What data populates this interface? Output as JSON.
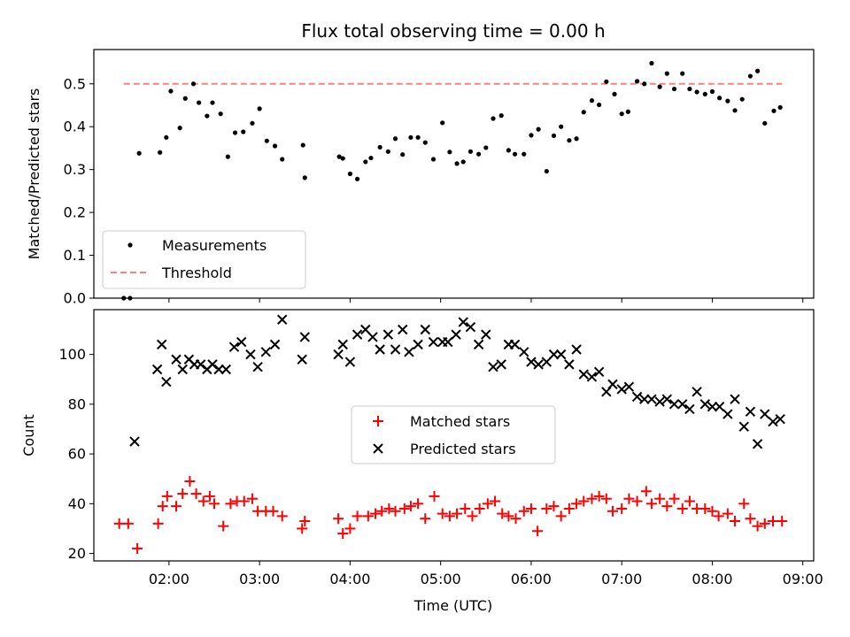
{
  "title": "Flux total observing time = 0.00 h",
  "xlabel": "Time (UTC)",
  "colors": {
    "measure": "#000000",
    "threshold": "#ff7f7f",
    "matched": "#ff0000",
    "predicted": "#000000"
  },
  "chart_data": [
    {
      "type": "scatter",
      "ylabel": "Matched/Predicted stars",
      "xlim": [
        1.17,
        9.12
      ],
      "ylim": [
        0,
        0.58
      ],
      "yticks": [
        "0.0",
        "0.1",
        "0.2",
        "0.3",
        "0.4",
        "0.5"
      ],
      "yticks_values": [
        0,
        0.1,
        0.2,
        0.3,
        0.4,
        0.5
      ],
      "legend": {
        "placement": "lower-left",
        "entries": [
          "Measurements",
          "Threshold"
        ]
      },
      "threshold": {
        "name": "Threshold",
        "y": 0.5,
        "x_range": [
          1.5,
          8.77
        ]
      },
      "series": [
        {
          "name": "Measurements",
          "x": [
            1.5,
            1.57,
            1.67,
            1.9,
            1.97,
            2.02,
            2.12,
            2.18,
            2.27,
            2.33,
            2.42,
            2.48,
            2.57,
            2.65,
            2.73,
            2.82,
            2.92,
            3.0,
            3.08,
            3.17,
            3.25,
            3.48,
            3.5,
            3.88,
            3.92,
            4.0,
            4.08,
            4.17,
            4.23,
            4.33,
            4.42,
            4.5,
            4.58,
            4.67,
            4.75,
            4.83,
            4.92,
            5.02,
            5.1,
            5.18,
            5.25,
            5.33,
            5.42,
            5.5,
            5.58,
            5.67,
            5.75,
            5.82,
            5.92,
            6.0,
            6.08,
            6.17,
            6.25,
            6.33,
            6.42,
            6.5,
            6.58,
            6.67,
            6.75,
            6.83,
            6.92,
            7.0,
            7.07,
            7.17,
            7.25,
            7.33,
            7.42,
            7.5,
            7.58,
            7.67,
            7.75,
            7.83,
            7.92,
            8.0,
            8.08,
            8.17,
            8.25,
            8.33,
            8.42,
            8.5,
            8.58,
            8.68,
            8.75
          ],
          "y": [
            0.0,
            0.0,
            0.338,
            0.34,
            0.375,
            0.483,
            0.397,
            0.466,
            0.5,
            0.456,
            0.425,
            0.456,
            0.43,
            0.33,
            0.386,
            0.388,
            0.408,
            0.442,
            0.367,
            0.355,
            0.324,
            0.357,
            0.281,
            0.33,
            0.326,
            0.29,
            0.278,
            0.318,
            0.327,
            0.352,
            0.342,
            0.372,
            0.335,
            0.375,
            0.375,
            0.363,
            0.324,
            0.409,
            0.341,
            0.314,
            0.318,
            0.342,
            0.336,
            0.351,
            0.419,
            0.426,
            0.345,
            0.336,
            0.336,
            0.38,
            0.394,
            0.296,
            0.379,
            0.4,
            0.368,
            0.372,
            0.434,
            0.461,
            0.451,
            0.505,
            0.476,
            0.43,
            0.435,
            0.506,
            0.5,
            0.548,
            0.493,
            0.524,
            0.488,
            0.524,
            0.488,
            0.481,
            0.476,
            0.482,
            0.467,
            0.46,
            0.438,
            0.464,
            0.518,
            0.53,
            0.408,
            0.437,
            0.445
          ]
        }
      ]
    },
    {
      "type": "scatter",
      "ylabel": "Count",
      "xlim": [
        1.17,
        9.12
      ],
      "ylim": [
        17,
        118
      ],
      "yticks": [
        "20",
        "40",
        "60",
        "80",
        "100"
      ],
      "yticks_values": [
        20,
        40,
        60,
        80,
        100
      ],
      "xticks": [
        "02:00",
        "03:00",
        "04:00",
        "05:00",
        "06:00",
        "07:00",
        "08:00",
        "09:00"
      ],
      "xticks_values": [
        2,
        3,
        4,
        5,
        6,
        7,
        8,
        9
      ],
      "legend": {
        "placement": "center-right",
        "entries": [
          "Matched stars",
          "Predicted stars"
        ]
      },
      "series": [
        {
          "name": "Matched stars",
          "x": [
            1.45,
            1.55,
            1.65,
            1.88,
            1.93,
            1.98,
            2.08,
            2.15,
            2.23,
            2.3,
            2.38,
            2.45,
            2.5,
            2.6,
            2.68,
            2.75,
            2.83,
            2.92,
            2.98,
            3.07,
            3.15,
            3.25,
            3.47,
            3.5,
            3.87,
            3.92,
            4.0,
            4.08,
            4.2,
            4.28,
            4.35,
            4.43,
            4.5,
            4.6,
            4.67,
            4.75,
            4.83,
            4.93,
            5.02,
            5.1,
            5.18,
            5.27,
            5.35,
            5.43,
            5.52,
            5.6,
            5.68,
            5.75,
            5.83,
            5.92,
            6.0,
            6.07,
            6.17,
            6.25,
            6.33,
            6.42,
            6.5,
            6.58,
            6.67,
            6.75,
            6.83,
            6.9,
            7.0,
            7.08,
            7.17,
            7.27,
            7.33,
            7.42,
            7.5,
            7.58,
            7.67,
            7.75,
            7.83,
            7.92,
            8.0,
            8.07,
            8.17,
            8.25,
            8.35,
            8.42,
            8.5,
            8.58,
            8.67,
            8.77
          ],
          "y": [
            32,
            32,
            22,
            32,
            39,
            43,
            39,
            44,
            49,
            44,
            41,
            43,
            40,
            31,
            40,
            41,
            41,
            42,
            37,
            37,
            37,
            35,
            30,
            33,
            34,
            28,
            30,
            35,
            35,
            36,
            37,
            38,
            37,
            38,
            39,
            40,
            34,
            43,
            36,
            35,
            36,
            38,
            35,
            38,
            40,
            41,
            36,
            35,
            34,
            37,
            38,
            29,
            38,
            39,
            35,
            38,
            40,
            41,
            42,
            43,
            42,
            37,
            38,
            42,
            41,
            45,
            40,
            42,
            39,
            42,
            38,
            41,
            38,
            38,
            37,
            35,
            36,
            33,
            40,
            34,
            31,
            32,
            33,
            33
          ]
        },
        {
          "name": "Predicted stars",
          "x": [
            1.62,
            1.87,
            1.92,
            1.97,
            2.08,
            2.15,
            2.22,
            2.28,
            2.35,
            2.42,
            2.48,
            2.55,
            2.63,
            2.72,
            2.8,
            2.9,
            2.98,
            3.07,
            3.17,
            3.25,
            3.47,
            3.5,
            3.87,
            3.92,
            4.0,
            4.08,
            4.17,
            4.25,
            4.33,
            4.42,
            4.5,
            4.58,
            4.65,
            4.75,
            4.83,
            4.92,
            5.02,
            5.08,
            5.17,
            5.25,
            5.33,
            5.42,
            5.5,
            5.58,
            5.67,
            5.75,
            5.82,
            5.92,
            6.0,
            6.08,
            6.17,
            6.25,
            6.33,
            6.42,
            6.5,
            6.58,
            6.67,
            6.75,
            6.83,
            6.9,
            7.0,
            7.08,
            7.17,
            7.25,
            7.33,
            7.42,
            7.5,
            7.58,
            7.67,
            7.75,
            7.83,
            7.92,
            8.0,
            8.08,
            8.17,
            8.25,
            8.35,
            8.42,
            8.5,
            8.58,
            8.67,
            8.75
          ],
          "y": [
            65,
            94,
            104,
            89,
            98,
            94,
            98,
            96,
            96,
            94,
            96,
            94,
            94,
            103,
            105,
            100,
            95,
            101,
            104,
            114,
            98,
            107,
            100,
            104,
            97,
            108,
            110,
            107,
            102,
            108,
            102,
            110,
            101,
            104,
            110,
            105,
            105,
            105,
            108,
            113,
            111,
            104,
            108,
            95,
            96,
            104,
            104,
            101,
            97,
            96,
            97,
            100,
            100,
            96,
            102,
            92,
            91,
            93,
            85,
            88,
            86,
            87,
            83,
            82,
            82,
            81,
            82,
            80,
            80,
            78,
            85,
            80,
            79,
            79,
            76,
            82,
            71,
            77,
            64,
            76,
            73,
            74
          ]
        }
      ]
    }
  ]
}
